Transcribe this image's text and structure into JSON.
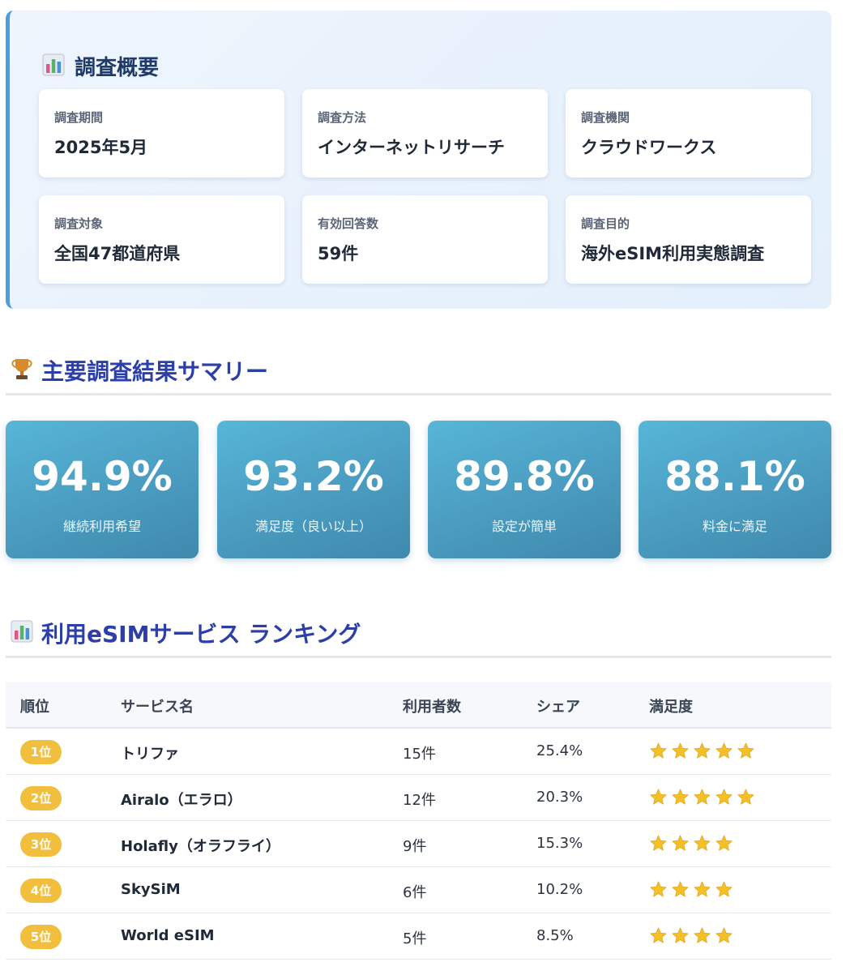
{
  "overview": {
    "title": "調査概要",
    "icon": "bar-chart-icon",
    "items": [
      {
        "label": "調査期間",
        "value": "2025年5月"
      },
      {
        "label": "調査方法",
        "value": "インターネットリサーチ"
      },
      {
        "label": "調査機関",
        "value": "クラウドワークス"
      },
      {
        "label": "調査対象",
        "value": "全国47都道府県"
      },
      {
        "label": "有効回答数",
        "value": "59件"
      },
      {
        "label": "調査目的",
        "value": "海外eSIM利用実態調査"
      }
    ]
  },
  "summary": {
    "title": "主要調査結果サマリー",
    "icon": "trophy-icon",
    "stats": [
      {
        "value": "94.9%",
        "label": "継続利用希望"
      },
      {
        "value": "93.2%",
        "label": "満足度（良い以上）"
      },
      {
        "value": "89.8%",
        "label": "設定が簡単"
      },
      {
        "value": "88.1%",
        "label": "料金に満足"
      }
    ]
  },
  "ranking": {
    "title": "利用eSIMサービス ランキング",
    "icon": "bar-chart-icon",
    "headers": {
      "rank": "順位",
      "name": "サービス名",
      "users": "利用者数",
      "share": "シェア",
      "satisfaction": "満足度"
    },
    "rows": [
      {
        "rank": "1位",
        "name": "トリファ",
        "users": "15件",
        "share": "25.4%",
        "stars": 5
      },
      {
        "rank": "2位",
        "name": "Airalo（エラロ）",
        "users": "12件",
        "share": "20.3%",
        "stars": 5
      },
      {
        "rank": "3位",
        "name": "Holafly（オラフライ）",
        "users": "9件",
        "share": "15.3%",
        "stars": 4
      },
      {
        "rank": "4位",
        "name": "SkySiM",
        "users": "6件",
        "share": "10.2%",
        "stars": 4
      },
      {
        "rank": "5位",
        "name": "World eSIM",
        "users": "5件",
        "share": "8.5%",
        "stars": 4
      }
    ]
  },
  "colors": {
    "accent_blue": "#4a9ee0",
    "heading_navy": "#2c3ea8",
    "stat_teal": "#4a9cc0",
    "badge_gold": "#f1be3d",
    "star_gold": "#f4c028"
  }
}
